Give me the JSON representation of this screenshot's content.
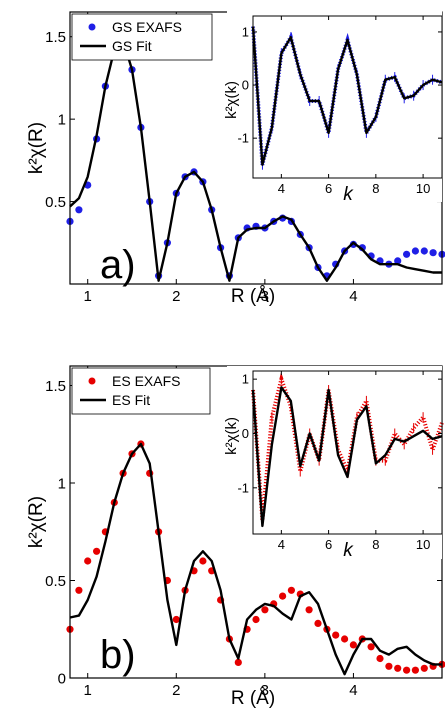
{
  "chart_data": [
    {
      "type": "line",
      "panel_label": "a)",
      "xlabel": "R (Å)",
      "ylabel": "k²χ(R)",
      "xlim": [
        0.8,
        5.0
      ],
      "ylim": [
        0.0,
        1.65
      ],
      "xticks": [
        1,
        2,
        3,
        4
      ],
      "yticks": [
        0.5,
        1,
        1.5
      ],
      "xtick_labels": [
        "1",
        "2",
        "3",
        "4"
      ],
      "ytick_labels": [
        "0.5",
        "1",
        "1.5"
      ],
      "grid": false,
      "legend_position": "top-left",
      "series": [
        {
          "name": "GS EXAFS",
          "marker": "circle",
          "color": "#1f1fe6",
          "x": [
            0.8,
            0.9,
            1.0,
            1.1,
            1.2,
            1.3,
            1.4,
            1.5,
            1.6,
            1.7,
            1.8,
            1.9,
            2.0,
            2.1,
            2.2,
            2.3,
            2.4,
            2.5,
            2.6,
            2.7,
            2.8,
            2.9,
            3.0,
            3.1,
            3.2,
            3.3,
            3.4,
            3.5,
            3.6,
            3.7,
            3.8,
            3.9,
            4.0,
            4.1,
            4.2,
            4.3,
            4.4,
            4.5,
            4.6,
            4.7,
            4.8,
            4.9,
            5.0
          ],
          "y": [
            0.38,
            0.45,
            0.6,
            0.88,
            1.2,
            1.42,
            1.48,
            1.3,
            0.95,
            0.5,
            0.05,
            0.25,
            0.55,
            0.65,
            0.68,
            0.62,
            0.45,
            0.22,
            0.05,
            0.28,
            0.34,
            0.35,
            0.34,
            0.38,
            0.4,
            0.38,
            0.3,
            0.22,
            0.1,
            0.05,
            0.12,
            0.2,
            0.24,
            0.22,
            0.17,
            0.14,
            0.12,
            0.14,
            0.18,
            0.2,
            0.2,
            0.19,
            0.18
          ]
        },
        {
          "name": "GS Fit",
          "marker": "line",
          "color": "#000000",
          "x": [
            0.8,
            0.9,
            1.0,
            1.1,
            1.2,
            1.3,
            1.4,
            1.5,
            1.6,
            1.7,
            1.8,
            1.9,
            2.0,
            2.1,
            2.2,
            2.3,
            2.4,
            2.5,
            2.6,
            2.7,
            2.8,
            2.9,
            3.0,
            3.1,
            3.2,
            3.3,
            3.4,
            3.5,
            3.6,
            3.7,
            3.8,
            3.9,
            4.0,
            4.1,
            4.2,
            4.3,
            4.4,
            4.5,
            4.6,
            4.7,
            4.8,
            4.9,
            5.0
          ],
          "y": [
            0.47,
            0.52,
            0.65,
            0.9,
            1.2,
            1.42,
            1.48,
            1.3,
            0.95,
            0.5,
            0.02,
            0.25,
            0.55,
            0.65,
            0.68,
            0.62,
            0.45,
            0.22,
            0.02,
            0.28,
            0.33,
            0.34,
            0.34,
            0.38,
            0.41,
            0.39,
            0.3,
            0.22,
            0.1,
            0.02,
            0.1,
            0.2,
            0.25,
            0.21,
            0.15,
            0.12,
            0.12,
            0.12,
            0.1,
            0.09,
            0.08,
            0.07,
            0.07
          ]
        }
      ],
      "inset": {
        "xlabel": "k",
        "ylabel": "k²χ(k)",
        "xlim": [
          2.8,
          10.8
        ],
        "ylim": [
          -1.75,
          1.3
        ],
        "xticks": [
          4,
          6,
          8,
          10
        ],
        "yticks": [
          -1,
          0,
          1
        ],
        "xtick_labels": [
          "4",
          "6",
          "8",
          "10"
        ],
        "ytick_labels": [
          "-1",
          "0",
          "1"
        ],
        "series": [
          {
            "name": "GS EXAFS",
            "marker": "errorbar",
            "color": "#1f1fe6",
            "x": [
              2.8,
              3.2,
              3.6,
              4.0,
              4.4,
              4.8,
              5.2,
              5.6,
              6.0,
              6.4,
              6.8,
              7.2,
              7.6,
              8.0,
              8.4,
              8.8,
              9.2,
              9.6,
              10.0,
              10.4,
              10.8
            ],
            "y": [
              1.1,
              -1.5,
              -0.8,
              0.6,
              0.9,
              0.2,
              -0.3,
              -0.3,
              -0.9,
              0.3,
              0.85,
              0.2,
              -0.9,
              -0.6,
              0.1,
              0.15,
              -0.25,
              -0.2,
              0.0,
              0.1,
              0.05
            ]
          },
          {
            "name": "GS Fit",
            "marker": "line",
            "color": "#000000",
            "x": [
              2.8,
              3.2,
              3.6,
              4.0,
              4.4,
              4.8,
              5.2,
              5.6,
              6.0,
              6.4,
              6.8,
              7.2,
              7.6,
              8.0,
              8.4,
              8.8,
              9.2,
              9.6,
              10.0,
              10.4,
              10.8
            ],
            "y": [
              1.1,
              -1.5,
              -0.8,
              0.6,
              0.9,
              0.2,
              -0.3,
              -0.3,
              -0.9,
              0.3,
              0.85,
              0.2,
              -0.9,
              -0.6,
              0.1,
              0.15,
              -0.25,
              -0.2,
              0.0,
              0.1,
              0.05
            ]
          }
        ]
      }
    },
    {
      "type": "line",
      "panel_label": "b)",
      "xlabel": "R (Å)",
      "ylabel": "k²χ(R)",
      "xlim": [
        0.8,
        5.0
      ],
      "ylim": [
        0.0,
        1.6
      ],
      "xticks": [
        1,
        2,
        3,
        4
      ],
      "yticks": [
        0,
        0.5,
        1,
        1.5
      ],
      "xtick_labels": [
        "1",
        "2",
        "3",
        "4"
      ],
      "ytick_labels": [
        "0",
        "0.5",
        "1",
        "1.5"
      ],
      "grid": false,
      "legend_position": "top-left",
      "series": [
        {
          "name": "ES EXAFS",
          "marker": "circle",
          "color": "#e60000",
          "x": [
            0.8,
            0.9,
            1.0,
            1.1,
            1.2,
            1.3,
            1.4,
            1.5,
            1.6,
            1.7,
            1.8,
            1.9,
            2.0,
            2.1,
            2.2,
            2.3,
            2.4,
            2.5,
            2.6,
            2.7,
            2.8,
            2.9,
            3.0,
            3.1,
            3.2,
            3.3,
            3.4,
            3.5,
            3.6,
            3.7,
            3.8,
            3.9,
            4.0,
            4.1,
            4.2,
            4.3,
            4.4,
            4.5,
            4.6,
            4.7,
            4.8,
            4.9,
            5.0
          ],
          "y": [
            0.25,
            0.45,
            0.6,
            0.65,
            0.75,
            0.9,
            1.05,
            1.15,
            1.2,
            1.05,
            0.75,
            0.5,
            0.3,
            0.45,
            0.55,
            0.6,
            0.55,
            0.4,
            0.2,
            0.08,
            0.25,
            0.3,
            0.35,
            0.38,
            0.42,
            0.45,
            0.43,
            0.35,
            0.28,
            0.25,
            0.22,
            0.2,
            0.17,
            0.2,
            0.16,
            0.1,
            0.06,
            0.05,
            0.04,
            0.04,
            0.05,
            0.06,
            0.07
          ]
        },
        {
          "name": "ES Fit",
          "marker": "line",
          "color": "#000000",
          "x": [
            0.8,
            0.9,
            1.0,
            1.1,
            1.2,
            1.3,
            1.4,
            1.5,
            1.6,
            1.7,
            1.8,
            1.9,
            2.0,
            2.1,
            2.2,
            2.3,
            2.4,
            2.5,
            2.6,
            2.7,
            2.8,
            2.9,
            3.0,
            3.1,
            3.2,
            3.3,
            3.4,
            3.5,
            3.6,
            3.7,
            3.8,
            3.9,
            4.0,
            4.1,
            4.2,
            4.3,
            4.4,
            4.5,
            4.6,
            4.7,
            4.8,
            4.9,
            5.0
          ],
          "y": [
            0.31,
            0.32,
            0.4,
            0.52,
            0.7,
            0.9,
            1.05,
            1.15,
            1.2,
            1.1,
            0.75,
            0.4,
            0.17,
            0.45,
            0.6,
            0.65,
            0.6,
            0.45,
            0.2,
            0.1,
            0.3,
            0.35,
            0.38,
            0.37,
            0.33,
            0.3,
            0.42,
            0.44,
            0.38,
            0.25,
            0.12,
            0.02,
            0.12,
            0.2,
            0.2,
            0.14,
            0.12,
            0.15,
            0.16,
            0.12,
            0.09,
            0.07,
            0.07
          ]
        }
      ],
      "inset": {
        "xlabel": "k",
        "ylabel": "k²χ(k)",
        "xlim": [
          2.8,
          10.8
        ],
        "ylim": [
          -1.85,
          1.15
        ],
        "xticks": [
          4,
          6,
          8,
          10
        ],
        "yticks": [
          -1,
          0,
          1
        ],
        "xtick_labels": [
          "4",
          "6",
          "8",
          "10"
        ],
        "ytick_labels": [
          "-1",
          "0",
          "1"
        ],
        "series": [
          {
            "name": "ES EXAFS",
            "marker": "errorbar",
            "color": "#e60000",
            "x": [
              2.8,
              3.2,
              3.6,
              4.0,
              4.4,
              4.8,
              5.2,
              5.6,
              6.0,
              6.4,
              6.8,
              7.2,
              7.6,
              8.0,
              8.4,
              8.8,
              9.2,
              9.6,
              10.0,
              10.4,
              10.8
            ],
            "y": [
              0.8,
              -1.6,
              0.3,
              1.0,
              0.5,
              -0.7,
              0.0,
              -0.5,
              0.8,
              -0.3,
              -0.7,
              0.3,
              0.6,
              -0.5,
              -0.5,
              0.0,
              -0.2,
              0.1,
              0.3,
              -0.3,
              0.2
            ]
          },
          {
            "name": "ES Fit",
            "marker": "line",
            "color": "#000000",
            "x": [
              2.8,
              3.2,
              3.6,
              4.0,
              4.4,
              4.8,
              5.2,
              5.6,
              6.0,
              6.4,
              6.8,
              7.2,
              7.6,
              8.0,
              8.4,
              8.8,
              9.2,
              9.6,
              10.0,
              10.4,
              10.8
            ],
            "y": [
              0.8,
              -1.7,
              -0.2,
              0.85,
              0.6,
              -0.6,
              0.0,
              -0.5,
              0.8,
              -0.4,
              -0.8,
              0.25,
              0.5,
              -0.55,
              -0.4,
              -0.1,
              -0.15,
              -0.05,
              0.05,
              -0.1,
              -0.05
            ]
          }
        ]
      }
    }
  ]
}
